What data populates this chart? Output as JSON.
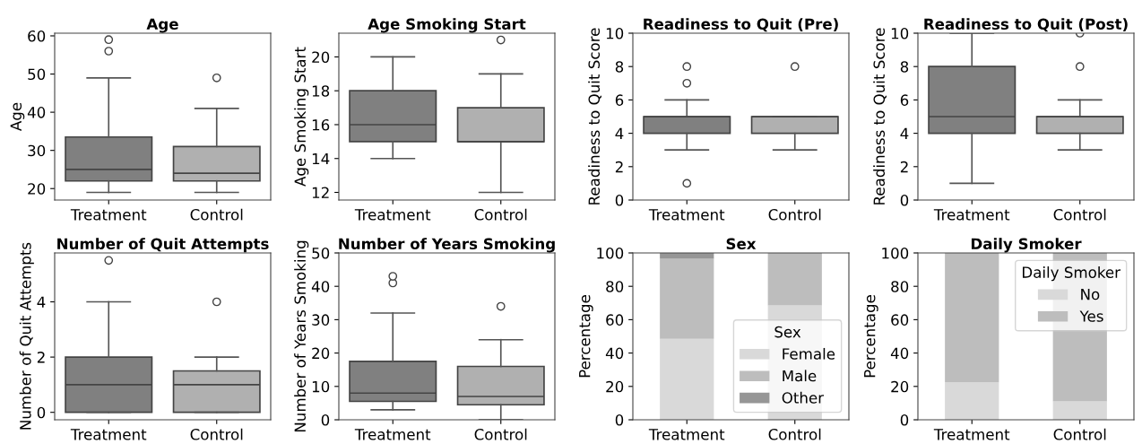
{
  "chart_data": [
    {
      "type": "box",
      "title": "Age",
      "ylabel": "Age",
      "categories": [
        "Treatment",
        "Control"
      ],
      "colors": [
        "#808080",
        "#b0b0b0"
      ],
      "ylim": [
        17,
        60.7
      ],
      "yticks": [
        20,
        30,
        40,
        50,
        60
      ],
      "grid": false,
      "boxes": [
        {
          "low": 19,
          "q1": 22,
          "median": 25,
          "q3": 33.5,
          "high": 49,
          "outliers": [
            56,
            59
          ]
        },
        {
          "low": 19,
          "q1": 22,
          "median": 24,
          "q3": 31,
          "high": 41,
          "outliers": [
            49
          ]
        }
      ]
    },
    {
      "type": "box",
      "title": "Age Smoking Start",
      "ylabel": "Age Smoking Start",
      "categories": [
        "Treatment",
        "Control"
      ],
      "colors": [
        "#808080",
        "#b0b0b0"
      ],
      "ylim": [
        11.55,
        21.4
      ],
      "yticks": [
        12,
        14,
        16,
        18,
        20
      ],
      "grid": false,
      "boxes": [
        {
          "low": 14,
          "q1": 15,
          "median": 16,
          "q3": 18,
          "high": 20
        },
        {
          "low": 12,
          "q1": 15,
          "median": 15,
          "q3": 17,
          "high": 19,
          "outliers": [
            21
          ]
        }
      ]
    },
    {
      "type": "box",
      "title": "Readiness to Quit (Pre)",
      "ylabel": "Readiness to Quit Score",
      "categories": [
        "Treatment",
        "Control"
      ],
      "colors": [
        "#808080",
        "#b0b0b0"
      ],
      "ylim": [
        0,
        10
      ],
      "yticks": [
        0,
        2,
        4,
        6,
        8,
        10
      ],
      "grid": false,
      "boxes": [
        {
          "low": 3,
          "q1": 4,
          "median": 5,
          "q3": 5,
          "high": 6,
          "outliers": [
            1,
            7,
            8
          ]
        },
        {
          "low": 3,
          "q1": 4,
          "median": 5,
          "q3": 5,
          "high": 5,
          "outliers": [
            8
          ]
        }
      ]
    },
    {
      "type": "box",
      "title": "Readiness to Quit (Post)",
      "ylabel": "Readiness to Quit Score",
      "categories": [
        "Treatment",
        "Control"
      ],
      "colors": [
        "#808080",
        "#b0b0b0"
      ],
      "ylim": [
        0,
        10
      ],
      "yticks": [
        0,
        2,
        4,
        6,
        8,
        10
      ],
      "grid": false,
      "boxes": [
        {
          "low": 1,
          "q1": 4,
          "median": 5,
          "q3": 8,
          "high": 10
        },
        {
          "low": 3,
          "q1": 4,
          "median": 5,
          "q3": 5,
          "high": 6,
          "outliers": [
            8,
            10
          ]
        }
      ]
    },
    {
      "type": "box",
      "title": "Number of Quit Attempts",
      "ylabel": "Number of Quit Attempts",
      "categories": [
        "Treatment",
        "Control"
      ],
      "colors": [
        "#808080",
        "#b0b0b0"
      ],
      "ylim": [
        -0.27,
        5.77
      ],
      "yticks": [
        0,
        2,
        4
      ],
      "grid": false,
      "boxes": [
        {
          "low": 0,
          "q1": 0,
          "median": 1,
          "q3": 2,
          "high": 4,
          "outliers": [
            5.5
          ]
        },
        {
          "low": 0,
          "q1": 0,
          "median": 1,
          "q3": 1.5,
          "high": 2,
          "outliers": [
            4
          ]
        }
      ]
    },
    {
      "type": "box",
      "title": "Number of Years Smoking",
      "ylabel": "Number of Years Smoking",
      "categories": [
        "Treatment",
        "Control"
      ],
      "colors": [
        "#808080",
        "#b0b0b0"
      ],
      "ylim": [
        0,
        50
      ],
      "yticks": [
        0,
        10,
        20,
        30,
        40,
        50
      ],
      "grid": false,
      "boxes": [
        {
          "low": 3,
          "q1": 5.5,
          "median": 8,
          "q3": 17.5,
          "high": 32,
          "outliers": [
            41,
            43
          ]
        },
        {
          "low": 0,
          "q1": 4.5,
          "median": 7,
          "q3": 16,
          "high": 24,
          "outliers": [
            34
          ]
        }
      ]
    },
    {
      "type": "bar",
      "stacked": true,
      "title": "Sex",
      "ylabel": "Percentage",
      "legend_title": "Sex",
      "legend": "bottom right",
      "categories": [
        "Treatment",
        "Control"
      ],
      "ylim": [
        0,
        100
      ],
      "yticks": [
        0,
        20,
        40,
        60,
        80,
        100
      ],
      "grid": false,
      "series": [
        {
          "name": "Female",
          "color": "#d9d9d9",
          "values": [
            48.5,
            68.5
          ]
        },
        {
          "name": "Male",
          "color": "#bdbdbd",
          "values": [
            48,
            31.5
          ]
        },
        {
          "name": "Other",
          "color": "#969696",
          "values": [
            3.5,
            0
          ]
        }
      ]
    },
    {
      "type": "bar",
      "stacked": true,
      "title": "Daily Smoker",
      "ylabel": "Percentage",
      "legend_title": "Daily Smoker",
      "legend": "top right",
      "categories": [
        "Treatment",
        "Control"
      ],
      "ylim": [
        0,
        100
      ],
      "yticks": [
        0,
        20,
        40,
        60,
        80,
        100
      ],
      "grid": false,
      "series": [
        {
          "name": "No",
          "color": "#d9d9d9",
          "values": [
            22.5,
            11
          ]
        },
        {
          "name": "Yes",
          "color": "#bdbdbd",
          "values": [
            77.5,
            89
          ]
        }
      ]
    }
  ]
}
